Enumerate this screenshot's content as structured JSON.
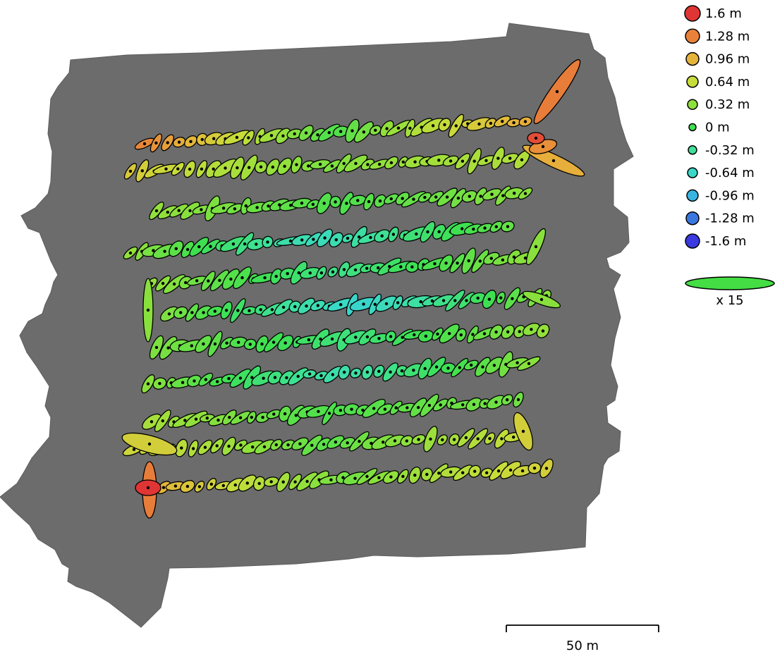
{
  "legend": {
    "entries": [
      {
        "label": "1.6 m",
        "color": "#e03535",
        "value": 1.6
      },
      {
        "label": "1.28 m",
        "color": "#e8823a",
        "value": 1.28
      },
      {
        "label": "0.96 m",
        "color": "#e6b43a",
        "value": 0.96
      },
      {
        "label": "0.64 m",
        "color": "#c8dc3a",
        "value": 0.64
      },
      {
        "label": "0.32 m",
        "color": "#8ee03c",
        "value": 0.32
      },
      {
        "label": "0 m",
        "color": "#3ee050",
        "value": 0
      },
      {
        "label": "-0.32 m",
        "color": "#3ee09a",
        "value": -0.32
      },
      {
        "label": "-0.64 m",
        "color": "#3ad8c8",
        "value": -0.64
      },
      {
        "label": "-0.96 m",
        "color": "#3ab4e0",
        "value": -0.96
      },
      {
        "label": "-1.28 m",
        "color": "#3a78e0",
        "value": -1.28
      },
      {
        "label": "-1.6 m",
        "color": "#3a3ae0",
        "value": -1.6
      }
    ],
    "scale_factor_label": "x 15",
    "scale_factor_color": "#44dd44"
  },
  "scale_bar": {
    "label": "50 m"
  },
  "map": {
    "background_color": "#6c6c6c"
  }
}
